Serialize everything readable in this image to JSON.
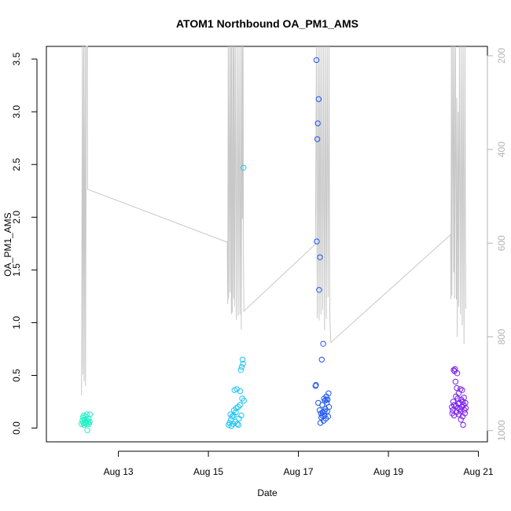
{
  "chart_data": {
    "type": "scatter",
    "title": "ATOM1 Northbound OA_PM1_AMS",
    "xlabel": "Date",
    "ylabel": "OA_PM1_AMS",
    "x_ticks": [
      "Aug 13",
      "Aug 15",
      "Aug 17",
      "Aug 19",
      "Aug 21"
    ],
    "x_tick_days": [
      13,
      15,
      17,
      19,
      21
    ],
    "xlim_days": [
      11.4,
      21.2
    ],
    "y_ticks": [
      "0.0",
      "0.5",
      "1.0",
      "1.5",
      "2.0",
      "2.5",
      "3.0",
      "3.5"
    ],
    "y_tick_values": [
      0,
      0.5,
      1,
      1.5,
      2,
      2.5,
      3,
      3.5
    ],
    "ylim": [
      -0.13,
      3.62
    ],
    "y2_ticks": [
      "200",
      "400",
      "600",
      "800",
      "1000"
    ],
    "y2_tick_values": [
      200,
      400,
      600,
      800,
      1000
    ],
    "y2lim": [
      1024,
      180
    ],
    "grid": false,
    "legend": "none",
    "series": [
      {
        "color": "#1ff0c6",
        "points": [
          [
            12.18,
            0.04
          ],
          [
            12.2,
            0.07
          ],
          [
            12.21,
            0.1
          ],
          [
            12.22,
            0.05
          ],
          [
            12.23,
            0.12
          ],
          [
            12.24,
            0.03
          ],
          [
            12.25,
            0.08
          ],
          [
            12.26,
            0.05
          ],
          [
            12.27,
            0.11
          ],
          [
            12.28,
            0.06
          ],
          [
            12.29,
            0.04
          ],
          [
            12.3,
            0.13
          ],
          [
            12.31,
            -0.02
          ],
          [
            12.32,
            0.07
          ],
          [
            12.33,
            0.05
          ],
          [
            12.34,
            0.09
          ],
          [
            12.35,
            0.04
          ],
          [
            12.36,
            0.06
          ],
          [
            12.37,
            0.13
          ]
        ]
      },
      {
        "color": "#1ec3f3",
        "points": [
          [
            15.45,
            0.03
          ],
          [
            15.47,
            0.05
          ],
          [
            15.49,
            0.13
          ],
          [
            15.5,
            0.08
          ],
          [
            15.51,
            0.02
          ],
          [
            15.53,
            0.11
          ],
          [
            15.55,
            0.04
          ],
          [
            15.57,
            0.17
          ],
          [
            15.58,
            0.36
          ],
          [
            15.6,
            0.06
          ],
          [
            15.61,
            0.15
          ],
          [
            15.63,
            0.37
          ],
          [
            15.64,
            0.04
          ],
          [
            15.66,
            0.2
          ],
          [
            15.67,
            0.03
          ],
          [
            15.68,
            0.09
          ],
          [
            15.7,
            0.22
          ],
          [
            15.71,
            0.35
          ],
          [
            15.72,
            0.55
          ],
          [
            15.73,
            0.12
          ],
          [
            15.74,
            0.58
          ],
          [
            15.75,
            0.28
          ],
          [
            15.76,
            0.65
          ],
          [
            15.77,
            0.61
          ],
          [
            15.78,
            2.47
          ],
          [
            15.79,
            0.26
          ],
          [
            15.62,
            0.19
          ],
          [
            15.56,
            0.12
          ]
        ]
      },
      {
        "color": "#1f56ee",
        "points": [
          [
            17.38,
            0.4
          ],
          [
            17.39,
            0.41
          ],
          [
            17.4,
            3.49
          ],
          [
            17.41,
            1.77
          ],
          [
            17.42,
            2.74
          ],
          [
            17.43,
            2.89
          ],
          [
            17.44,
            0.24
          ],
          [
            17.45,
            3.12
          ],
          [
            17.46,
            1.31
          ],
          [
            17.47,
            0.17
          ],
          [
            17.48,
            1.62
          ],
          [
            17.49,
            0.05
          ],
          [
            17.5,
            0.14
          ],
          [
            17.51,
            0.1
          ],
          [
            17.52,
            0.65
          ],
          [
            17.53,
            0.22
          ],
          [
            17.54,
            0.15
          ],
          [
            17.55,
            0.8
          ],
          [
            17.56,
            0.07
          ],
          [
            17.57,
            0.28
          ],
          [
            17.58,
            0.12
          ],
          [
            17.59,
            0.26
          ],
          [
            17.6,
            0.18
          ],
          [
            17.61,
            0.09
          ],
          [
            17.62,
            0.3
          ],
          [
            17.63,
            0.24
          ],
          [
            17.64,
            0.16
          ],
          [
            17.65,
            0.27
          ],
          [
            17.66,
            0.11
          ],
          [
            17.67,
            0.33
          ],
          [
            17.68,
            0.2
          ],
          [
            17.58,
            0.16
          ],
          [
            17.62,
            0.27
          ],
          [
            17.53,
            0.12
          ]
        ]
      },
      {
        "color": "#7a1fef",
        "points": [
          [
            20.41,
            0.2
          ],
          [
            20.42,
            0.14
          ],
          [
            20.43,
            0.17
          ],
          [
            20.44,
            0.25
          ],
          [
            20.45,
            0.55
          ],
          [
            20.46,
            0.12
          ],
          [
            20.47,
            0.54
          ],
          [
            20.48,
            0.56
          ],
          [
            20.49,
            0.44
          ],
          [
            20.5,
            0.21
          ],
          [
            20.51,
            0.15
          ],
          [
            20.52,
            0.38
          ],
          [
            20.53,
            0.52
          ],
          [
            20.54,
            0.28
          ],
          [
            20.55,
            0.19
          ],
          [
            20.56,
            0.33
          ],
          [
            20.57,
            0.13
          ],
          [
            20.58,
            0.24
          ],
          [
            20.59,
            0.18
          ],
          [
            20.6,
            0.37
          ],
          [
            20.61,
            0.08
          ],
          [
            20.62,
            0.27
          ],
          [
            20.63,
            0.2
          ],
          [
            20.64,
            0.36
          ],
          [
            20.65,
            0.11
          ],
          [
            20.66,
            0.03
          ],
          [
            20.67,
            0.22
          ],
          [
            20.68,
            0.29
          ],
          [
            20.69,
            0.17
          ],
          [
            20.7,
            0.14
          ],
          [
            20.71,
            0.24
          ],
          [
            20.72,
            0.19
          ],
          [
            20.46,
            0.22
          ],
          [
            20.5,
            0.3
          ],
          [
            20.55,
            0.23
          ],
          [
            20.6,
            0.16
          ],
          [
            20.65,
            0.25
          ]
        ]
      }
    ],
    "overlay_line": {
      "color": "#c8c8c8",
      "axis": "right",
      "points": [
        [
          12.18,
          925
        ],
        [
          12.2,
          120
        ],
        [
          12.21,
          880
        ],
        [
          12.23,
          120
        ],
        [
          12.24,
          895
        ],
        [
          12.26,
          120
        ],
        [
          12.27,
          905
        ],
        [
          12.29,
          120
        ],
        [
          12.31,
          120
        ],
        [
          12.315,
          485
        ],
        [
          15.42,
          598
        ],
        [
          15.43,
          730
        ],
        [
          15.44,
          120
        ],
        [
          15.45,
          718
        ],
        [
          15.47,
          120
        ],
        [
          15.48,
          705
        ],
        [
          15.5,
          120
        ],
        [
          15.51,
          752
        ],
        [
          15.52,
          120
        ],
        [
          15.53,
          748
        ],
        [
          15.55,
          120
        ],
        [
          15.56,
          718
        ],
        [
          15.57,
          120
        ],
        [
          15.58,
          735
        ],
        [
          15.6,
          120
        ],
        [
          15.62,
          764
        ],
        [
          15.64,
          120
        ],
        [
          15.66,
          755
        ],
        [
          15.68,
          120
        ],
        [
          15.7,
          752
        ],
        [
          15.72,
          120
        ],
        [
          15.73,
          785
        ],
        [
          15.75,
          120
        ],
        [
          15.76,
          548
        ],
        [
          15.77,
          120
        ],
        [
          15.78,
          640
        ],
        [
          15.79,
          745
        ],
        [
          17.38,
          602
        ],
        [
          17.4,
          120
        ],
        [
          17.42,
          760
        ],
        [
          17.44,
          120
        ],
        [
          17.46,
          765
        ],
        [
          17.48,
          120
        ],
        [
          17.5,
          752
        ],
        [
          17.52,
          120
        ],
        [
          17.54,
          742
        ],
        [
          17.56,
          120
        ],
        [
          17.58,
          785
        ],
        [
          17.6,
          120
        ],
        [
          17.62,
          762
        ],
        [
          17.64,
          120
        ],
        [
          17.66,
          715
        ],
        [
          17.68,
          120
        ],
        [
          17.7,
          760
        ],
        [
          17.72,
          812
        ],
        [
          20.38,
          582
        ],
        [
          20.39,
          720
        ],
        [
          20.4,
          120
        ],
        [
          20.41,
          712
        ],
        [
          20.43,
          120
        ],
        [
          20.45,
          662
        ],
        [
          20.46,
          120
        ],
        [
          20.47,
          718
        ],
        [
          20.49,
          120
        ],
        [
          20.51,
          720
        ],
        [
          20.52,
          290
        ],
        [
          20.53,
          800
        ],
        [
          20.55,
          320
        ],
        [
          20.56,
          735
        ],
        [
          20.58,
          120
        ],
        [
          20.6,
          752
        ],
        [
          20.62,
          120
        ],
        [
          20.64,
          775
        ],
        [
          20.66,
          120
        ],
        [
          20.68,
          815
        ],
        [
          20.7,
          120
        ],
        [
          20.72,
          740
        ]
      ]
    }
  }
}
